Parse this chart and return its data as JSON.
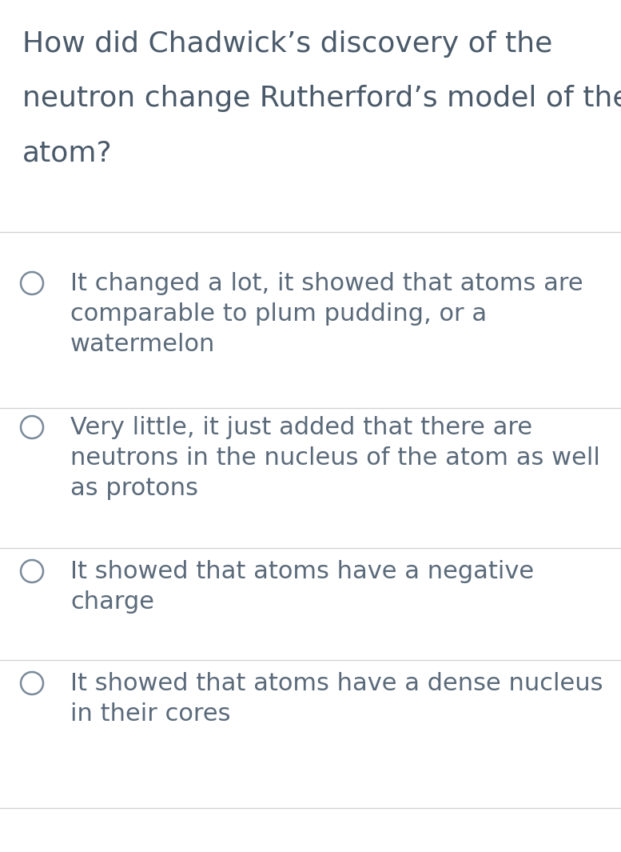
{
  "background_color": "#ffffff",
  "question_lines": [
    "How did Chadwick’s discovery of the",
    "neutron change Rutherford’s model of the",
    "atom?"
  ],
  "question_color": "#4a5a6a",
  "question_fontsize": 26,
  "options": [
    [
      "It changed a lot, it showed that atoms are",
      "comparable to plum pudding, or a",
      "watermelon"
    ],
    [
      "Very little, it just added that there are",
      "neutrons in the nucleus of the atom as well",
      "as protons"
    ],
    [
      "It showed that atoms have a negative",
      "charge"
    ],
    [
      "It showed that atoms have a dense nucleus",
      "in their cores"
    ]
  ],
  "option_color": "#5a6a7a",
  "option_fontsize": 22,
  "divider_color": "#d0d0d0",
  "circle_color": "#7a8a9a",
  "circle_linewidth": 1.8,
  "fig_width": 7.77,
  "fig_height": 10.65,
  "dpi": 100
}
